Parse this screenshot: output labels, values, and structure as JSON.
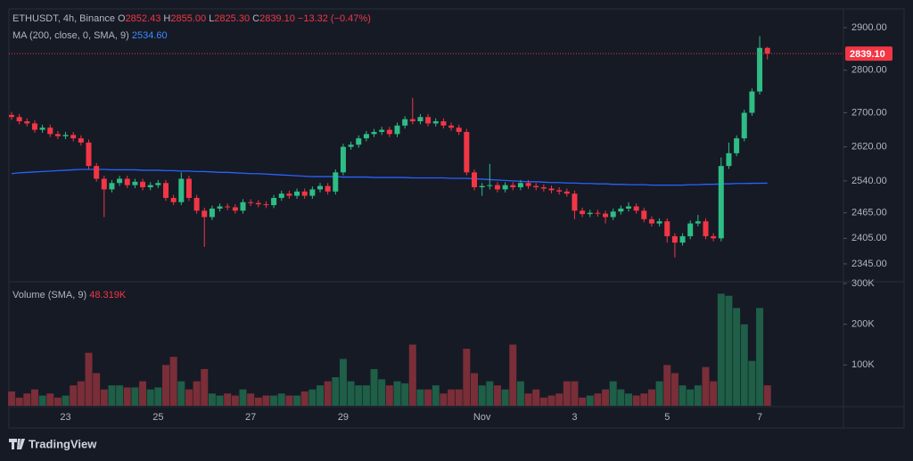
{
  "header": {
    "symbol": "ETHUSDT, 4h, Binance",
    "ohlc": [
      [
        "O",
        "2852.43"
      ],
      [
        "H",
        "2855.00"
      ],
      [
        "L",
        "2825.30"
      ],
      [
        "C",
        "2839.10"
      ]
    ],
    "change": "−13.32 (−0.47%)",
    "ma_label": "MA (200, close, 0, SMA, 9)",
    "ma_value": "2534.60",
    "volume_label": "Volume (SMA, 9)",
    "volume_value": "48.319K",
    "last_price": "2839.10"
  },
  "chart_data": [
    {
      "type": "candlestick",
      "up_color": "#2ebd85",
      "down_color": "#f23645",
      "categories": [
        null,
        null,
        null,
        null,
        null,
        null,
        null,
        "23",
        null,
        null,
        null,
        null,
        null,
        null,
        null,
        null,
        null,
        null,
        null,
        "25",
        null,
        null,
        null,
        null,
        null,
        null,
        null,
        null,
        null,
        null,
        null,
        "27",
        null,
        null,
        null,
        null,
        null,
        null,
        null,
        null,
        null,
        null,
        null,
        "29",
        null,
        null,
        null,
        null,
        null,
        null,
        null,
        null,
        null,
        null,
        null,
        null,
        null,
        null,
        null,
        null,
        null,
        "Nov",
        null,
        null,
        null,
        null,
        null,
        null,
        null,
        null,
        null,
        null,
        null,
        "3",
        null,
        null,
        null,
        null,
        null,
        null,
        null,
        null,
        null,
        null,
        null,
        "5",
        null,
        null,
        null,
        null,
        null,
        null,
        null,
        null,
        null,
        null,
        null,
        "7",
        null
      ],
      "open": [
        2695,
        2690,
        2680,
        2675,
        2660,
        2665,
        2650,
        2645,
        2648,
        2640,
        2630,
        2575,
        2545,
        2520,
        2535,
        2545,
        2530,
        2538,
        2525,
        2530,
        2535,
        2500,
        2490,
        2545,
        2500,
        2470,
        2455,
        2475,
        2480,
        2478,
        2470,
        2490,
        2488,
        2485,
        2483,
        2500,
        2510,
        2505,
        2515,
        2505,
        2520,
        2528,
        2515,
        2560,
        2620,
        2625,
        2640,
        2650,
        2655,
        2660,
        2650,
        2670,
        2685,
        2680,
        2690,
        2675,
        2680,
        2670,
        2665,
        2655,
        2560,
        2525,
        2528,
        2530,
        2520,
        2530,
        2525,
        2535,
        2528,
        2525,
        2522,
        2518,
        2515,
        2510,
        2470,
        2462,
        2465,
        2463,
        2455,
        2468,
        2475,
        2480,
        2470,
        2450,
        2440,
        2445,
        2410,
        2395,
        2410,
        2440,
        2445,
        2410,
        2405,
        2575,
        2605,
        2640,
        2700,
        2750,
        2852.43
      ],
      "high": [
        2702,
        2697,
        2687,
        2682,
        2672,
        2672,
        2657,
        2655,
        2655,
        2647,
        2637,
        2582,
        2552,
        2542,
        2552,
        2552,
        2545,
        2545,
        2537,
        2542,
        2542,
        2507,
        2560,
        2552,
        2507,
        2477,
        2482,
        2487,
        2487,
        2485,
        2497,
        2497,
        2495,
        2492,
        2507,
        2517,
        2517,
        2522,
        2522,
        2527,
        2535,
        2535,
        2567,
        2627,
        2632,
        2647,
        2657,
        2662,
        2667,
        2667,
        2677,
        2692,
        2735,
        2697,
        2697,
        2687,
        2687,
        2677,
        2672,
        2662,
        2567,
        2535,
        2580,
        2537,
        2537,
        2537,
        2542,
        2542,
        2535,
        2532,
        2529,
        2525,
        2522,
        2517,
        2477,
        2472,
        2472,
        2470,
        2475,
        2482,
        2490,
        2487,
        2477,
        2457,
        2452,
        2452,
        2417,
        2417,
        2447,
        2460,
        2452,
        2417,
        2595,
        2630,
        2647,
        2707,
        2757,
        2880,
        2855
      ],
      "low": [
        2683,
        2673,
        2668,
        2653,
        2653,
        2643,
        2638,
        2638,
        2633,
        2623,
        2568,
        2538,
        2455,
        2513,
        2528,
        2523,
        2523,
        2518,
        2518,
        2523,
        2493,
        2483,
        2483,
        2493,
        2463,
        2385,
        2448,
        2468,
        2471,
        2463,
        2463,
        2481,
        2478,
        2476,
        2476,
        2493,
        2498,
        2498,
        2498,
        2498,
        2513,
        2508,
        2508,
        2553,
        2613,
        2618,
        2633,
        2643,
        2648,
        2643,
        2643,
        2663,
        2673,
        2673,
        2668,
        2668,
        2663,
        2658,
        2648,
        2553,
        2518,
        2505,
        2520,
        2513,
        2513,
        2518,
        2518,
        2521,
        2518,
        2515,
        2511,
        2508,
        2503,
        2450,
        2455,
        2455,
        2456,
        2440,
        2448,
        2461,
        2468,
        2463,
        2443,
        2433,
        2433,
        2395,
        2360,
        2388,
        2403,
        2433,
        2403,
        2398,
        2398,
        2568,
        2598,
        2633,
        2693,
        2743,
        2825.3
      ],
      "close": [
        2690,
        2680,
        2675,
        2660,
        2665,
        2650,
        2645,
        2648,
        2640,
        2630,
        2575,
        2545,
        2520,
        2535,
        2545,
        2530,
        2538,
        2525,
        2530,
        2535,
        2500,
        2490,
        2545,
        2500,
        2470,
        2455,
        2475,
        2480,
        2478,
        2470,
        2490,
        2488,
        2485,
        2483,
        2500,
        2510,
        2505,
        2515,
        2505,
        2520,
        2528,
        2515,
        2560,
        2620,
        2625,
        2640,
        2650,
        2655,
        2660,
        2650,
        2670,
        2685,
        2680,
        2690,
        2675,
        2680,
        2670,
        2665,
        2655,
        2560,
        2525,
        2528,
        2530,
        2520,
        2530,
        2525,
        2535,
        2528,
        2525,
        2522,
        2518,
        2515,
        2510,
        2470,
        2462,
        2465,
        2463,
        2455,
        2468,
        2475,
        2480,
        2470,
        2450,
        2440,
        2445,
        2410,
        2395,
        2410,
        2440,
        2445,
        2410,
        2405,
        2575,
        2605,
        2640,
        2700,
        2750,
        2852.43,
        2839.1
      ],
      "ma": {
        "color": "#2962ff",
        "values": [
          2557,
          2559,
          2560,
          2561,
          2562,
          2563,
          2564,
          2565,
          2566,
          2567,
          2567,
          2567,
          2567,
          2566,
          2566,
          2566,
          2566,
          2565,
          2565,
          2565,
          2564,
          2564,
          2563,
          2563,
          2562,
          2562,
          2561,
          2560,
          2560,
          2559,
          2558,
          2557,
          2557,
          2556,
          2555,
          2554,
          2553,
          2552,
          2551,
          2550,
          2550,
          2550,
          2550,
          2549,
          2549,
          2549,
          2549,
          2548,
          2548,
          2548,
          2548,
          2548,
          2547,
          2547,
          2547,
          2547,
          2547,
          2546,
          2546,
          2546,
          2545,
          2544,
          2543,
          2542,
          2541,
          2540,
          2539,
          2538,
          2538,
          2537,
          2536,
          2536,
          2535,
          2535,
          2534,
          2534,
          2533,
          2533,
          2532,
          2532,
          2531,
          2531,
          2531,
          2530,
          2530,
          2530,
          2530,
          2530,
          2531,
          2531,
          2532,
          2532,
          2533,
          2533,
          2534,
          2534,
          2534.3,
          2534.5,
          2534.6
        ]
      },
      "ylim": [
        2303,
        2944
      ],
      "yticks": [
        {
          "value": 2345,
          "label": "2345.00"
        },
        {
          "value": 2405,
          "label": "2405.00"
        },
        {
          "value": 2465,
          "label": "2465.00"
        },
        {
          "value": 2540,
          "label": "2540.00"
        },
        {
          "value": 2620,
          "label": "2620.00"
        },
        {
          "value": 2700,
          "label": "2700.00"
        },
        {
          "value": 2800,
          "label": "2800.00"
        },
        {
          "value": 2900,
          "label": "2900.00"
        }
      ]
    },
    {
      "type": "bar",
      "up_color": "#1f5e47",
      "down_color": "#7a2e38",
      "values": [
        35000,
        20000,
        30000,
        40000,
        25000,
        30000,
        20000,
        25000,
        50000,
        60000,
        130000,
        80000,
        40000,
        50000,
        50000,
        45000,
        45000,
        60000,
        40000,
        45000,
        100000,
        120000,
        60000,
        40000,
        60000,
        90000,
        30000,
        25000,
        30000,
        25000,
        40000,
        30000,
        20000,
        25000,
        25000,
        30000,
        25000,
        25000,
        35000,
        40000,
        50000,
        60000,
        70000,
        115000,
        60000,
        50000,
        50000,
        90000,
        65000,
        50000,
        60000,
        55000,
        150000,
        40000,
        40000,
        50000,
        30000,
        40000,
        40000,
        140000,
        80000,
        50000,
        60000,
        50000,
        40000,
        150000,
        60000,
        30000,
        40000,
        20000,
        25000,
        30000,
        60000,
        60000,
        20000,
        25000,
        30000,
        40000,
        60000,
        40000,
        30000,
        25000,
        30000,
        40000,
        60000,
        100000,
        80000,
        50000,
        40000,
        50000,
        95000,
        60000,
        275000,
        270000,
        240000,
        200000,
        110000,
        240000,
        50000
      ],
      "ylim": [
        0,
        300000
      ],
      "yticks": [
        {
          "value": 100000,
          "label": "100K"
        },
        {
          "value": 200000,
          "label": "200K"
        },
        {
          "value": 300000,
          "label": "300K"
        }
      ]
    }
  ],
  "footer": {
    "brand": "TradingView"
  }
}
